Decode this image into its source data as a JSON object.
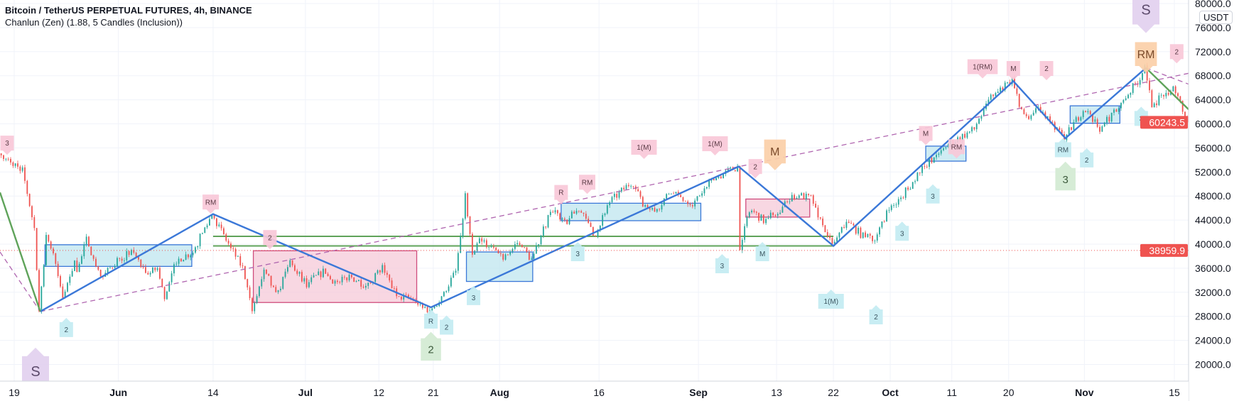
{
  "header": {
    "symbol_title": "Bitcoin / TetherUS PERPETUAL FUTURES, 4h, BINANCE",
    "indicator_title": "Chanlun (Zen) (1.88, 5 Candles (Inclusion))",
    "currency_badge": "USDT"
  },
  "colors": {
    "up": "#26a69a",
    "down": "#ef5350",
    "stroke_blue": "#3b78d8",
    "thin_stroke": "#555c6b",
    "green_line": "#5fa35a",
    "dashed": "#b066b0",
    "box_blue_fill": "#bfe5ef",
    "box_blue_stroke": "#3b78d8",
    "box_pink_fill": "#f6c9d8",
    "box_pink_stroke": "#cf4c7d",
    "price_label": "#ef5350",
    "grid": "#f0f3fa"
  },
  "chart_data": {
    "type": "candlestick",
    "title": "Bitcoin / TetherUS PERPETUAL FUTURES, 4h, BINANCE",
    "total_bars": 502,
    "ylim": [
      16000,
      80600
    ],
    "grid": true,
    "y_ticks": [
      "80000.0",
      "76000.0",
      "72000.0",
      "68000.0",
      "64000.0",
      "60000.0",
      "56000.0",
      "52000.0",
      "48000.0",
      "44000.0",
      "40000.0",
      "36000.0",
      "32000.0",
      "28000.0",
      "24000.0",
      "20000.0"
    ],
    "y_tick_values": [
      80000,
      76000,
      72000,
      68000,
      64000,
      60000,
      56000,
      52000,
      48000,
      44000,
      40000,
      36000,
      32000,
      28000,
      24000,
      20000
    ],
    "x_ticks": [
      {
        "label": "19",
        "bar": 6,
        "bold": false
      },
      {
        "label": "Jun",
        "bar": 50,
        "bold": true
      },
      {
        "label": "14",
        "bar": 90,
        "bold": false
      },
      {
        "label": "Jul",
        "bar": 129,
        "bold": true
      },
      {
        "label": "12",
        "bar": 160,
        "bold": false
      },
      {
        "label": "21",
        "bar": 183,
        "bold": false
      },
      {
        "label": "Aug",
        "bar": 211,
        "bold": true
      },
      {
        "label": "16",
        "bar": 253,
        "bold": false
      },
      {
        "label": "Sep",
        "bar": 295,
        "bold": true
      },
      {
        "label": "13",
        "bar": 328,
        "bold": false
      },
      {
        "label": "22",
        "bar": 352,
        "bold": false
      },
      {
        "label": "Oct",
        "bar": 376,
        "bold": true
      },
      {
        "label": "11",
        "bar": 402,
        "bold": false
      },
      {
        "label": "20",
        "bar": 426,
        "bold": false
      },
      {
        "label": "Nov",
        "bar": 458,
        "bold": true
      },
      {
        "label": "15",
        "bar": 496,
        "bold": false
      }
    ],
    "price_path": [
      [
        0,
        55100
      ],
      [
        4,
        53800
      ],
      [
        10,
        52500
      ],
      [
        15,
        42600
      ],
      [
        17,
        28800
      ],
      [
        20,
        41300
      ],
      [
        23,
        38700
      ],
      [
        27,
        30800
      ],
      [
        32,
        37400
      ],
      [
        33,
        35400
      ],
      [
        37,
        40700
      ],
      [
        43,
        34100
      ],
      [
        50,
        37400
      ],
      [
        57,
        38700
      ],
      [
        62,
        34700
      ],
      [
        67,
        36000
      ],
      [
        70,
        30800
      ],
      [
        75,
        37400
      ],
      [
        82,
        38700
      ],
      [
        90,
        45000
      ],
      [
        97,
        40000
      ],
      [
        103,
        36000
      ],
      [
        107,
        28800
      ],
      [
        112,
        36000
      ],
      [
        117,
        31400
      ],
      [
        123,
        37000
      ],
      [
        130,
        33400
      ],
      [
        137,
        35400
      ],
      [
        143,
        33400
      ],
      [
        148,
        34700
      ],
      [
        155,
        33200
      ],
      [
        162,
        36000
      ],
      [
        168,
        31400
      ],
      [
        175,
        30800
      ],
      [
        182,
        28800
      ],
      [
        187,
        31400
      ],
      [
        193,
        35400
      ],
      [
        197,
        47900
      ],
      [
        200,
        38000
      ],
      [
        203,
        40700
      ],
      [
        213,
        38000
      ],
      [
        220,
        40000
      ],
      [
        225,
        37400
      ],
      [
        233,
        45500
      ],
      [
        240,
        43900
      ],
      [
        245,
        45900
      ],
      [
        252,
        41300
      ],
      [
        257,
        46600
      ],
      [
        267,
        50300
      ],
      [
        272,
        46800
      ],
      [
        277,
        45300
      ],
      [
        283,
        48600
      ],
      [
        293,
        46800
      ],
      [
        302,
        50800
      ],
      [
        312,
        52900
      ],
      [
        313,
        39000
      ],
      [
        317,
        45900
      ],
      [
        323,
        43900
      ],
      [
        330,
        45900
      ],
      [
        337,
        48200
      ],
      [
        343,
        47600
      ],
      [
        352,
        39700
      ],
      [
        358,
        43900
      ],
      [
        365,
        41300
      ],
      [
        370,
        40700
      ],
      [
        375,
        45300
      ],
      [
        380,
        47200
      ],
      [
        390,
        52500
      ],
      [
        400,
        56400
      ],
      [
        412,
        59100
      ],
      [
        417,
        63700
      ],
      [
        428,
        67100
      ],
      [
        433,
        61100
      ],
      [
        440,
        62400
      ],
      [
        450,
        57600
      ],
      [
        458,
        62400
      ],
      [
        465,
        59100
      ],
      [
        473,
        63000
      ],
      [
        482,
        67600
      ],
      [
        484,
        69300
      ],
      [
        487,
        63000
      ],
      [
        492,
        65000
      ],
      [
        497,
        65700
      ],
      [
        502,
        60243.5
      ]
    ],
    "last_price": "60243.5",
    "last_price_value": 60243.5,
    "reference_price": "38959.9",
    "reference_price_value": 38959.9,
    "strokes_thick": [
      [
        17,
        28800
      ],
      [
        90,
        45000
      ],
      [
        182,
        29500
      ],
      [
        312,
        52900
      ],
      [
        352,
        39700
      ],
      [
        428,
        67100
      ],
      [
        450,
        57600
      ],
      [
        484,
        69300
      ]
    ],
    "green_strokes": [
      [
        [
          0,
          48600
        ],
        [
          17,
          28800
        ]
      ],
      [
        [
          484,
          69300
        ],
        [
          502,
          62400
        ]
      ]
    ],
    "dashed_lines": [
      [
        [
          17,
          28800
        ],
        [
          502,
          68400
        ]
      ],
      [
        [
          0,
          38700
        ],
        [
          17,
          28800
        ]
      ],
      [
        [
          484,
          69300
        ],
        [
          502,
          66600
        ]
      ]
    ],
    "green_horizontals": [
      {
        "from": 90,
        "to": 352,
        "price": 41300
      },
      {
        "from": 90,
        "to": 352,
        "price": 39700
      }
    ],
    "boxes": [
      {
        "kind": "blue",
        "from": 19,
        "to": 81,
        "top": 39900,
        "bottom": 36300
      },
      {
        "kind": "blue",
        "from": 197,
        "to": 225,
        "top": 38700,
        "bottom": 33800
      },
      {
        "kind": "blue",
        "from": 237,
        "to": 296,
        "top": 46800,
        "bottom": 43900
      },
      {
        "kind": "blue",
        "from": 391,
        "to": 408,
        "top": 56300,
        "bottom": 53800
      },
      {
        "kind": "blue",
        "from": 452,
        "to": 473,
        "top": 63000,
        "bottom": 60100
      },
      {
        "kind": "pink",
        "from": 107,
        "to": 176,
        "top": 38900,
        "bottom": 30300
      },
      {
        "kind": "pink",
        "from": 315,
        "to": 342,
        "top": 47500,
        "bottom": 44500
      }
    ],
    "markers": [
      {
        "label": "3",
        "kind": "pink",
        "bar": 3,
        "price": 56800
      },
      {
        "label": "RM",
        "kind": "pink",
        "bar": 89,
        "price": 47000
      },
      {
        "label": "2",
        "kind": "pink",
        "bar": 114,
        "price": 41100
      },
      {
        "label": "R",
        "kind": "pink",
        "bar": 237,
        "price": 48600
      },
      {
        "label": "RM",
        "kind": "pink",
        "bar": 248,
        "price": 50300
      },
      {
        "label": "1(M)",
        "kind": "pink",
        "bar": 272,
        "price": 56100
      },
      {
        "label": "1(M)",
        "kind": "pink",
        "bar": 302,
        "price": 56700
      },
      {
        "label": "2",
        "kind": "pink",
        "bar": 319,
        "price": 52900
      },
      {
        "label": "M",
        "kind": "pink",
        "bar": 391,
        "price": 58400
      },
      {
        "label": "RM",
        "kind": "pink",
        "bar": 404,
        "price": 56200
      },
      {
        "label": "1(RM)",
        "kind": "pink",
        "bar": 415,
        "price": 69500
      },
      {
        "label": "M",
        "kind": "pink",
        "bar": 428,
        "price": 69200
      },
      {
        "label": "2",
        "kind": "pink",
        "bar": 442,
        "price": 69200
      },
      {
        "label": "2",
        "kind": "pink",
        "bar": 497,
        "price": 72000
      },
      {
        "label": "M",
        "kind": "orange",
        "bar": 312,
        "price": 55400
      },
      {
        "label": "RM",
        "kind": "orange",
        "bar": 484,
        "price": 71600
      },
      {
        "label": "S",
        "kind": "purple-down",
        "bar": 484,
        "price": 79000
      },
      {
        "label": "S",
        "kind": "purple-up",
        "bar": 15,
        "price": 18900
      },
      {
        "label": "2",
        "kind": "cyan",
        "bar": 28,
        "price": 25800
      },
      {
        "label": "R",
        "kind": "cyan",
        "bar": 182,
        "price": 27200
      },
      {
        "label": "2",
        "kind": "cyan",
        "bar": 187,
        "price": 26200
      },
      {
        "label": "3",
        "kind": "cyan",
        "bar": 200,
        "price": 31100
      },
      {
        "label": "3",
        "kind": "cyan",
        "bar": 244,
        "price": 38400
      },
      {
        "label": "3",
        "kind": "cyan",
        "bar": 305,
        "price": 36400
      },
      {
        "label": "M",
        "kind": "cyan",
        "bar": 322,
        "price": 38400
      },
      {
        "label": "1(M)",
        "kind": "cyan",
        "bar": 351,
        "price": 30500
      },
      {
        "label": "2",
        "kind": "cyan",
        "bar": 370,
        "price": 27900
      },
      {
        "label": "3",
        "kind": "cyan",
        "bar": 381,
        "price": 41800
      },
      {
        "label": "3",
        "kind": "cyan",
        "bar": 394,
        "price": 48000
      },
      {
        "label": "RM",
        "kind": "cyan",
        "bar": 449,
        "price": 55700
      },
      {
        "label": "2",
        "kind": "cyan",
        "bar": 459,
        "price": 54000
      },
      {
        "label": "3",
        "kind": "cyan",
        "bar": 482,
        "price": 60900
      },
      {
        "label": "2",
        "kind": "green",
        "bar": 182,
        "price": 22500
      },
      {
        "label": "3",
        "kind": "green",
        "bar": 450,
        "price": 50800
      }
    ]
  }
}
